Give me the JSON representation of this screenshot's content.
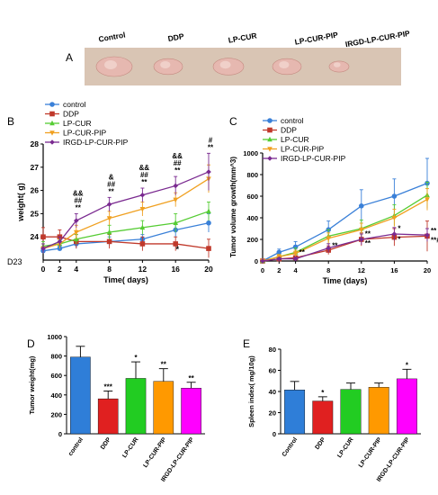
{
  "panels": {
    "A": "A",
    "B": "B",
    "C": "C",
    "D": "D",
    "E": "E",
    "corner_mark": "D23"
  },
  "photo": {
    "labels": [
      "Control",
      "DDP",
      "LP-CUR",
      "LP-CUR-PIP",
      "IRGD-LP-CUR-PIP"
    ],
    "background_color": "#d9c5b4",
    "tissue_color": "#e6b8b0",
    "relative_sizes": [
      1.0,
      0.8,
      0.85,
      0.8,
      0.55
    ]
  },
  "colors": {
    "control": "#2f7ed8",
    "DDP": "#e02020",
    "LP-CUR": "#22cc22",
    "LP-CUR-PIP": "#ff9900",
    "IRGD-LP-CUR-PIP": "#ff00ff"
  },
  "line_colors": {
    "control": "#3a80d8",
    "DDP": "#c0392b",
    "LP-CUR": "#55cc33",
    "LP-CUR-PIP": "#f0a020",
    "IRGD-LP-CUR-PIP": "#7a2a90"
  },
  "chart_data": [
    {
      "id": "B",
      "type": "line",
      "ylabel": "weight( g)",
      "xlabel": "Time( days)",
      "x": [
        0,
        2,
        4,
        8,
        12,
        16,
        20
      ],
      "xticks": [
        "0",
        "2",
        "4",
        "8",
        "12",
        "16",
        "20"
      ],
      "ylim": [
        23,
        28
      ],
      "yticks": [
        "24",
        "25",
        "26",
        "27",
        "28"
      ],
      "legend": "top-left",
      "series": [
        {
          "name": "control",
          "values": [
            23.4,
            23.5,
            23.7,
            23.8,
            23.9,
            24.3,
            24.6
          ],
          "err": [
            0.1,
            0.1,
            0.2,
            0.2,
            0.2,
            0.3,
            0.4
          ]
        },
        {
          "name": "DDP",
          "values": [
            24.0,
            24.0,
            23.8,
            23.8,
            23.7,
            23.7,
            23.5
          ],
          "err": [
            0.4,
            0.3,
            0.3,
            0.3,
            0.3,
            0.3,
            0.4
          ]
        },
        {
          "name": "LP-CUR",
          "values": [
            23.6,
            23.7,
            23.9,
            24.2,
            24.4,
            24.6,
            25.1
          ],
          "err": [
            0.2,
            0.2,
            0.2,
            0.3,
            0.3,
            0.4,
            0.4
          ]
        },
        {
          "name": "LP-CUR-PIP",
          "values": [
            23.5,
            23.7,
            24.2,
            24.8,
            25.2,
            25.6,
            26.5
          ],
          "err": [
            0.2,
            0.2,
            0.3,
            0.3,
            0.3,
            0.3,
            0.6
          ]
        },
        {
          "name": "IRGD-LP-CUR-PIP",
          "values": [
            23.5,
            23.8,
            24.7,
            25.4,
            25.8,
            26.2,
            26.8
          ],
          "err": [
            0.2,
            0.2,
            0.3,
            0.3,
            0.3,
            0.4,
            0.8
          ]
        }
      ],
      "annotations": [
        {
          "x": 4,
          "lines": [
            "&&",
            "##",
            "**"
          ]
        },
        {
          "x": 8,
          "lines": [
            "&",
            "##",
            "**"
          ]
        },
        {
          "x": 12,
          "lines": [
            "&&",
            "##",
            "**"
          ]
        },
        {
          "x": 16,
          "lines": [
            "&&",
            "##",
            "**"
          ]
        },
        {
          "x": 20,
          "lines": [
            "#",
            "**"
          ]
        },
        {
          "x": 16,
          "lines": [
            "*"
          ],
          "low": true
        }
      ]
    },
    {
      "id": "C",
      "type": "line",
      "ylabel": "Tumor volume growth(mm^3)",
      "xlabel": "Time (days)",
      "x": [
        0,
        2,
        4,
        8,
        12,
        16,
        20
      ],
      "xticks": [
        "0",
        "2",
        "4",
        "8",
        "12",
        "16",
        "20"
      ],
      "ylim": [
        0,
        1000
      ],
      "yticks": [
        "0",
        "200",
        "400",
        "600",
        "800",
        "1000"
      ],
      "legend": "top-left",
      "series": [
        {
          "name": "control",
          "values": [
            0,
            80,
            130,
            290,
            510,
            600,
            720
          ],
          "err": [
            0,
            30,
            50,
            80,
            150,
            160,
            230
          ]
        },
        {
          "name": "DDP",
          "values": [
            0,
            20,
            30,
            100,
            200,
            220,
            230
          ],
          "err": [
            0,
            10,
            20,
            40,
            60,
            80,
            140
          ]
        },
        {
          "name": "LP-CUR",
          "values": [
            0,
            40,
            80,
            230,
            300,
            420,
            610
          ],
          "err": [
            0,
            20,
            40,
            60,
            80,
            100,
            120
          ]
        },
        {
          "name": "LP-CUR-PIP",
          "values": [
            0,
            40,
            70,
            210,
            290,
            400,
            570
          ],
          "err": [
            0,
            20,
            30,
            50,
            60,
            80,
            100
          ]
        },
        {
          "name": "IRGD-LP-CUR-PIP",
          "values": [
            0,
            20,
            20,
            120,
            200,
            250,
            240
          ],
          "err": [
            0,
            10,
            15,
            40,
            50,
            60,
            60
          ]
        }
      ],
      "annotations": [
        {
          "x": 4,
          "y": 60,
          "text": "**"
        },
        {
          "x": 8,
          "y": 120,
          "text": "**"
        },
        {
          "x": 12,
          "y": 230,
          "text": "**"
        },
        {
          "x": 12,
          "y": 140,
          "text": "**"
        },
        {
          "x": 16,
          "y": 280,
          "text": "*"
        },
        {
          "x": 16,
          "y": 180,
          "text": "*"
        },
        {
          "x": 20,
          "y": 260,
          "text": "**"
        },
        {
          "x": 20,
          "y": 170,
          "text": "**##&"
        }
      ]
    },
    {
      "id": "D",
      "type": "bar",
      "ylabel": "Tumor weight(mg)",
      "categories": [
        "control",
        "DDP",
        "LP-CUR",
        "LP-CUR-PIP",
        "IRGD-LP-CUR-PIP"
      ],
      "values": [
        790,
        360,
        570,
        540,
        470
      ],
      "err": [
        110,
        80,
        170,
        130,
        60
      ],
      "sig": [
        "",
        "***",
        "*",
        "**",
        "**"
      ],
      "ylim": [
        0,
        1000
      ],
      "yticks": [
        "0",
        "200",
        "400",
        "600",
        "800",
        "1000"
      ]
    },
    {
      "id": "E",
      "type": "bar",
      "ylabel": "Spleen index( mg/10g)",
      "categories": [
        "Control",
        "DDP",
        "LP-CUR",
        "LP-CUR-PIP",
        "IRGD-LP-CUR-PIP"
      ],
      "values": [
        41.5,
        31,
        42,
        44,
        52
      ],
      "err": [
        8,
        4,
        6,
        4,
        9
      ],
      "sig": [
        "",
        "*",
        "",
        "",
        "*"
      ],
      "ylim": [
        0,
        80
      ],
      "yticks": [
        "0",
        "20",
        "40",
        "60",
        "80"
      ]
    }
  ]
}
